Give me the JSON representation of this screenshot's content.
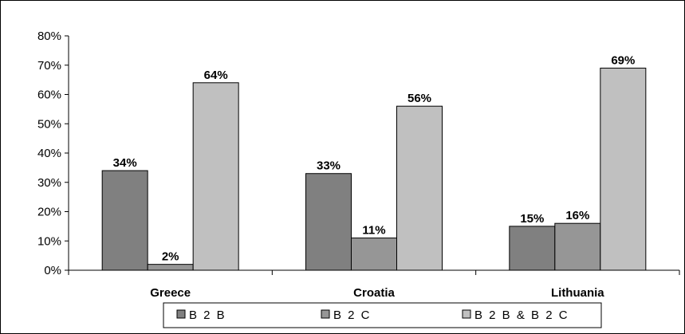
{
  "chart_data": {
    "type": "bar",
    "categories": [
      "Greece",
      "Croatia",
      "Lithuania"
    ],
    "series": [
      {
        "name": "B 2 B",
        "values": [
          34,
          33,
          15
        ],
        "color": "#808080"
      },
      {
        "name": "B 2 C",
        "values": [
          2,
          11,
          16
        ],
        "color": "#969696"
      },
      {
        "name": "B 2 B & B 2 C",
        "values": [
          64,
          56,
          69
        ],
        "color": "#c0c0c0"
      }
    ],
    "data_labels": [
      [
        "34%",
        "2%",
        "64%"
      ],
      [
        "33%",
        "11%",
        "56%"
      ],
      [
        "15%",
        "16%",
        "69%"
      ]
    ],
    "ylim": [
      0,
      80
    ],
    "y_ticks": [
      "0%",
      "10%",
      "20%",
      "30%",
      "40%",
      "50%",
      "60%",
      "70%",
      "80%"
    ],
    "grid": false,
    "legend_position": "bottom",
    "title": "",
    "xlabel": "",
    "ylabel": ""
  }
}
